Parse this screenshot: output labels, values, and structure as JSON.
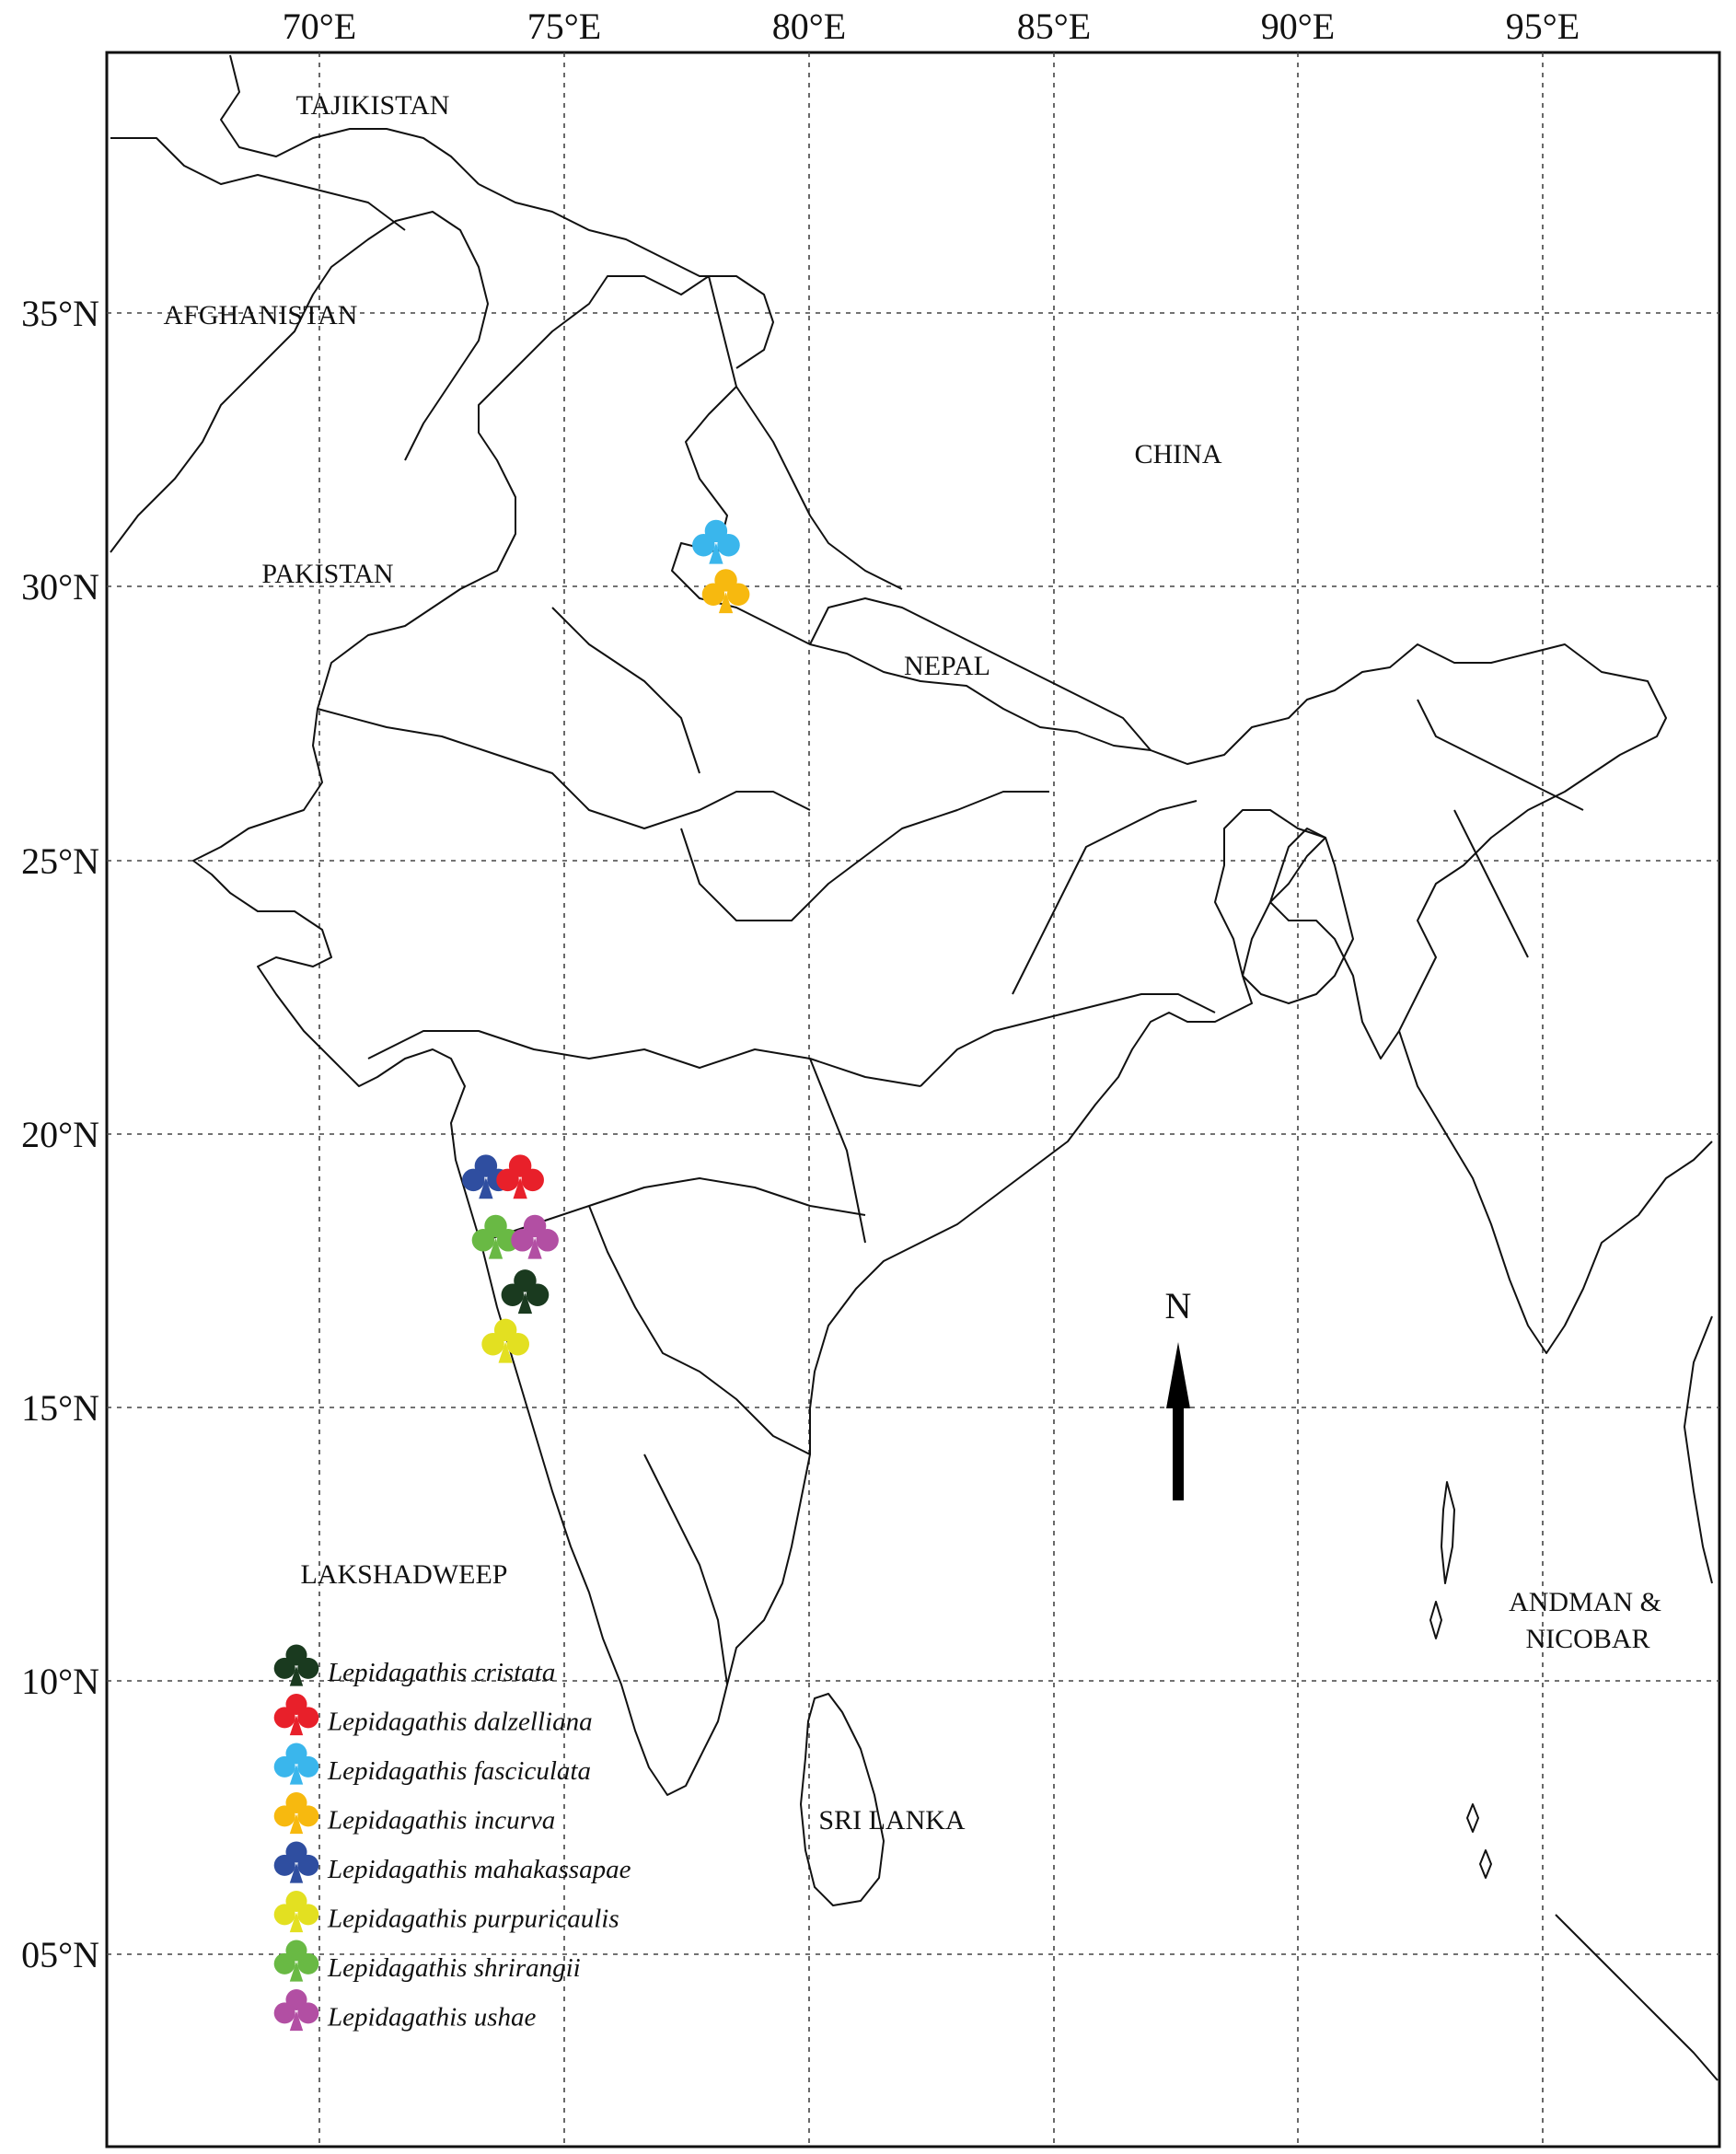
{
  "map": {
    "longitude_labels": [
      "70°E",
      "75°E",
      "80°E",
      "85°E",
      "90°E",
      "95°E"
    ],
    "latitude_labels": [
      "35°N",
      "30°N",
      "25°N",
      "20°N",
      "15°N",
      "10°N",
      "05°N"
    ],
    "region_labels": {
      "tajikistan": "TAJIKISTAN",
      "afghanistan": "AFGHANISTAN",
      "pakistan": "PAKISTAN",
      "china": "CHINA",
      "nepal": "NEPAL",
      "lakshadweep": "LAKSHADWEEP",
      "sri_lanka": "SRI LANKA",
      "andaman_line1": "ANDMAN &",
      "andaman_line2": "NICOBAR"
    },
    "north_label": "N"
  },
  "legend": [
    {
      "name": "Lepidagathis cristata",
      "color": "#1a3a1f"
    },
    {
      "name": "Lepidagathis dalzelliana",
      "color": "#e8202a"
    },
    {
      "name": "Lepidagathis fasciculata",
      "color": "#3ab6ec"
    },
    {
      "name": "Lepidagathis incurva",
      "color": "#f7b90f"
    },
    {
      "name": "Lepidagathis mahakassapae",
      "color": "#2f4ea0"
    },
    {
      "name": "Lepidagathis purpuricaulis",
      "color": "#e3e021"
    },
    {
      "name": "Lepidagathis shrirangii",
      "color": "#69b944"
    },
    {
      "name": "Lepidagathis ushae",
      "color": "#b24fa3"
    }
  ],
  "occurrences": [
    {
      "species": "Lepidagathis fasciculata",
      "lon": 78.1,
      "lat": 30.8
    },
    {
      "species": "Lepidagathis incurva",
      "lon": 78.3,
      "lat": 29.9
    },
    {
      "species": "Lepidagathis mahakassapae",
      "lon": 73.4,
      "lat": 19.2
    },
    {
      "species": "Lepidagathis dalzelliana",
      "lon": 74.1,
      "lat": 19.2
    },
    {
      "species": "Lepidagathis shrirangii",
      "lon": 73.6,
      "lat": 18.1
    },
    {
      "species": "Lepidagathis ushae",
      "lon": 74.4,
      "lat": 18.1
    },
    {
      "species": "Lepidagathis cristata",
      "lon": 74.2,
      "lat": 17.1
    },
    {
      "species": "Lepidagathis purpuricaulis",
      "lon": 73.8,
      "lat": 16.2
    }
  ]
}
